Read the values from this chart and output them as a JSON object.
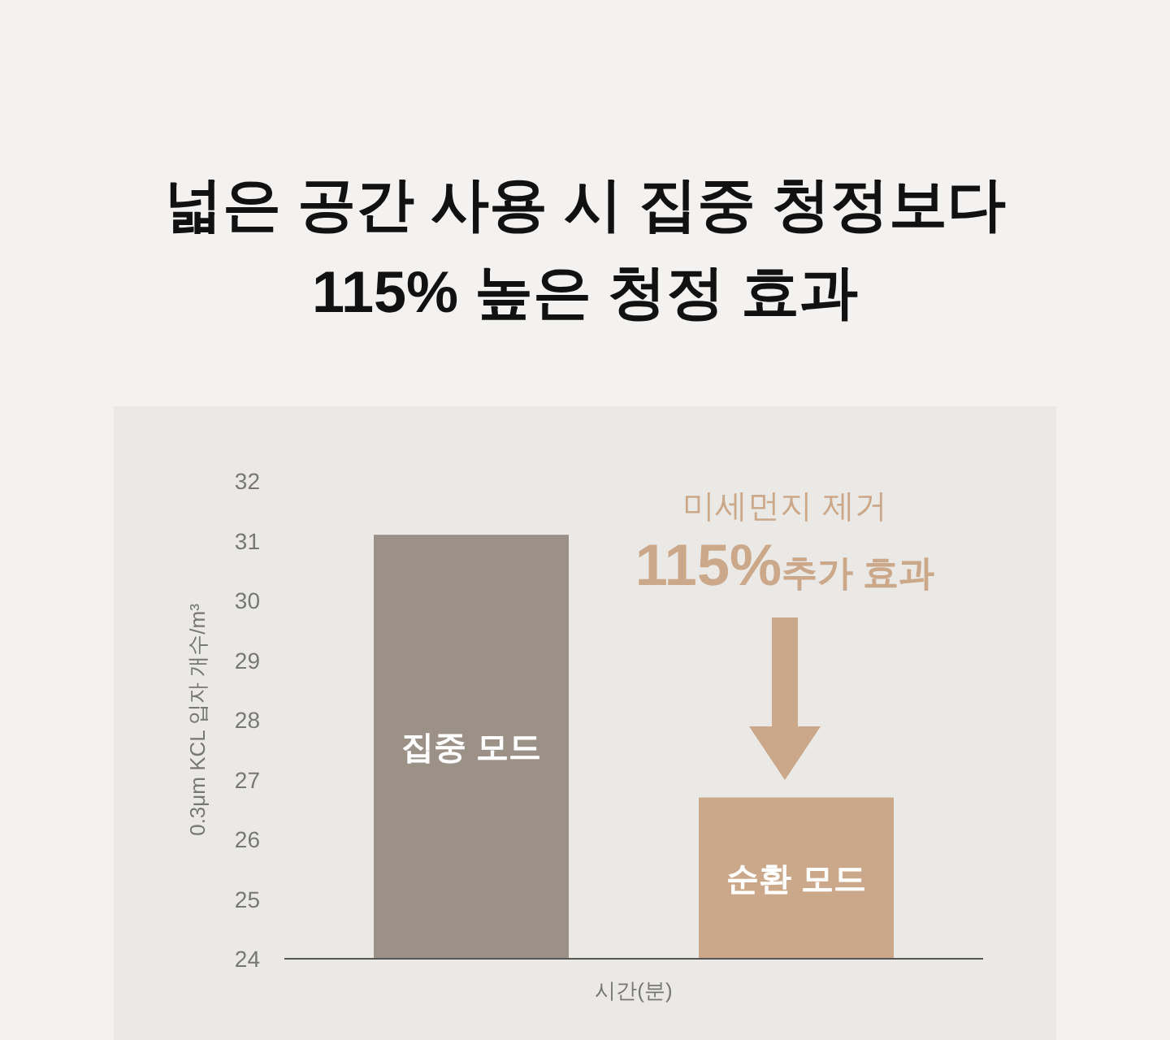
{
  "chart_data": {
    "type": "bar",
    "title": "넓은 공간 사용 시 집중 청정보다\n115% 높은 청정 효과",
    "categories": [
      "집중 모드",
      "순환 모드"
    ],
    "values": [
      31.1,
      26.7
    ],
    "colors": [
      "#9b9187",
      "#cba88a"
    ],
    "xlabel": "시간(분)",
    "ylabel": "0.3μm KCL 입자 개수/m³",
    "ylim": [
      24,
      32
    ],
    "yticks": [
      24,
      25,
      26,
      27,
      28,
      29,
      30,
      31,
      32
    ],
    "grid": false,
    "annotations": [
      "미세먼지 제거",
      "115%추가 효과"
    ]
  }
}
